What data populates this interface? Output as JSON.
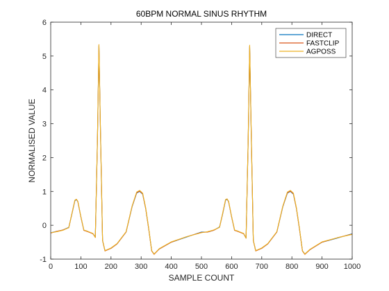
{
  "chart_data": {
    "type": "line",
    "title": "60BPM NORMAL SINUS RHYTHM",
    "xlabel": "SAMPLE COUNT",
    "ylabel": "NORMALISED VALUE",
    "xlim": [
      0,
      1000
    ],
    "ylim": [
      -1,
      6
    ],
    "xticks": [
      0,
      100,
      200,
      300,
      400,
      500,
      600,
      700,
      800,
      900,
      1000
    ],
    "yticks": [
      -1,
      0,
      1,
      2,
      3,
      4,
      5,
      6
    ],
    "grid": false,
    "legend_position": "top-right",
    "x": [
      0,
      20,
      40,
      60,
      70,
      80,
      85,
      90,
      100,
      110,
      120,
      140,
      148,
      155,
      160,
      165,
      172,
      180,
      200,
      220,
      250,
      270,
      285,
      295,
      305,
      315,
      325,
      335,
      343,
      360,
      400,
      450,
      500,
      520,
      540,
      560,
      570,
      580,
      585,
      590,
      600,
      610,
      620,
      640,
      648,
      655,
      660,
      665,
      672,
      680,
      700,
      720,
      750,
      770,
      785,
      795,
      805,
      815,
      825,
      835,
      843,
      860,
      900,
      950,
      1000
    ],
    "series": [
      {
        "name": "DIRECT",
        "color": "#0072BD",
        "values": [
          -0.22,
          -0.18,
          -0.14,
          -0.06,
          0.32,
          0.72,
          0.76,
          0.7,
          0.25,
          -0.15,
          -0.17,
          -0.25,
          -0.35,
          2.5,
          5.3,
          2.8,
          -0.45,
          -0.75,
          -0.68,
          -0.55,
          -0.2,
          0.55,
          0.95,
          1.0,
          0.92,
          0.5,
          -0.1,
          -0.75,
          -0.85,
          -0.7,
          -0.5,
          -0.35,
          -0.2,
          -0.2,
          -0.15,
          -0.05,
          0.32,
          0.74,
          0.77,
          0.7,
          0.25,
          -0.15,
          -0.17,
          -0.25,
          -0.38,
          2.5,
          5.28,
          2.8,
          -0.45,
          -0.75,
          -0.68,
          -0.55,
          -0.2,
          0.55,
          0.95,
          1.0,
          0.92,
          0.5,
          -0.1,
          -0.75,
          -0.85,
          -0.72,
          -0.5,
          -0.38,
          -0.25
        ]
      },
      {
        "name": "FASTCLIP",
        "color": "#D95319",
        "values": [
          -0.23,
          -0.18,
          -0.14,
          -0.07,
          0.33,
          0.73,
          0.77,
          0.7,
          0.25,
          -0.15,
          -0.18,
          -0.25,
          -0.36,
          2.5,
          5.32,
          2.8,
          -0.45,
          -0.76,
          -0.68,
          -0.55,
          -0.2,
          0.56,
          0.96,
          1.01,
          0.93,
          0.5,
          -0.1,
          -0.76,
          -0.86,
          -0.7,
          -0.5,
          -0.34,
          -0.21,
          -0.2,
          -0.15,
          -0.06,
          0.33,
          0.75,
          0.78,
          0.7,
          0.25,
          -0.15,
          -0.18,
          -0.25,
          -0.38,
          2.5,
          5.3,
          2.8,
          -0.45,
          -0.76,
          -0.68,
          -0.55,
          -0.2,
          0.56,
          0.96,
          1.01,
          0.93,
          0.5,
          -0.1,
          -0.76,
          -0.86,
          -0.72,
          -0.5,
          -0.37,
          -0.26
        ]
      },
      {
        "name": "AGPOSS",
        "color": "#EDB120",
        "values": [
          -0.22,
          -0.19,
          -0.15,
          -0.07,
          0.33,
          0.74,
          0.77,
          0.71,
          0.26,
          -0.14,
          -0.17,
          -0.24,
          -0.36,
          2.52,
          5.34,
          2.82,
          -0.44,
          -0.75,
          -0.67,
          -0.54,
          -0.19,
          0.57,
          0.98,
          1.03,
          0.95,
          0.52,
          -0.08,
          -0.75,
          -0.85,
          -0.69,
          -0.49,
          -0.34,
          -0.22,
          -0.19,
          -0.14,
          -0.06,
          0.34,
          0.76,
          0.78,
          0.71,
          0.26,
          -0.14,
          -0.17,
          -0.24,
          -0.38,
          2.52,
          5.32,
          2.82,
          -0.44,
          -0.75,
          -0.67,
          -0.54,
          -0.19,
          0.57,
          0.98,
          1.03,
          0.95,
          0.52,
          -0.08,
          -0.75,
          -0.85,
          -0.71,
          -0.49,
          -0.37,
          -0.27
        ]
      }
    ]
  }
}
